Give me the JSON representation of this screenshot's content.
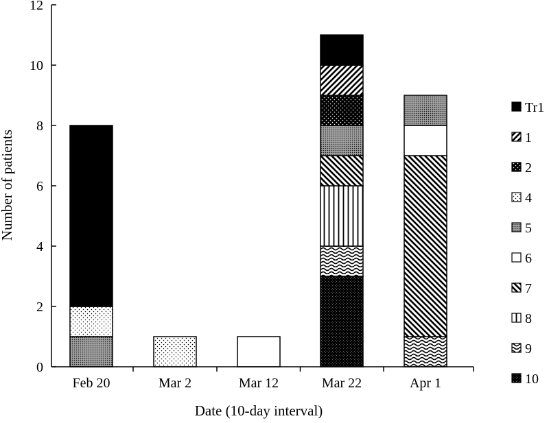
{
  "chart_data": {
    "type": "bar",
    "stacked": true,
    "xlabel": "Date (10-day interval)",
    "ylabel": "Number of patients",
    "ylim": [
      0,
      12
    ],
    "yticks": [
      0,
      2,
      4,
      6,
      8,
      10,
      12
    ],
    "grid": false,
    "legend_position": "right",
    "categories": [
      "Feb 20",
      "Mar 2",
      "Mar 12",
      "Mar 22",
      "Apr 1"
    ],
    "series": [
      {
        "name": "Tr1",
        "pattern": "solid-black",
        "values": [
          6,
          0,
          0,
          1,
          0
        ]
      },
      {
        "name": "1",
        "pattern": "diagonal-up",
        "values": [
          0,
          0,
          0,
          1,
          0
        ]
      },
      {
        "name": "2",
        "pattern": "black-dotted",
        "values": [
          0,
          0,
          0,
          1,
          0
        ]
      },
      {
        "name": "4",
        "pattern": "sparse-dots",
        "values": [
          1,
          1,
          0,
          0,
          0
        ]
      },
      {
        "name": "5",
        "pattern": "fine-gray",
        "values": [
          1,
          0,
          0,
          1,
          1
        ]
      },
      {
        "name": "6",
        "pattern": "white",
        "values": [
          0,
          0,
          1,
          0,
          1
        ]
      },
      {
        "name": "7",
        "pattern": "diagonal-down",
        "values": [
          0,
          0,
          0,
          1,
          6
        ]
      },
      {
        "name": "8",
        "pattern": "vertical-lines",
        "values": [
          0,
          0,
          0,
          2,
          0
        ]
      },
      {
        "name": "9",
        "pattern": "wave",
        "values": [
          0,
          0,
          0,
          1,
          1
        ]
      },
      {
        "name": "10",
        "pattern": "dark-dense",
        "values": [
          0,
          0,
          0,
          3,
          0
        ]
      }
    ],
    "stack_order": [
      [
        "5",
        "4",
        "Tr1"
      ],
      [
        "4"
      ],
      [
        "6"
      ],
      [
        "10",
        "9",
        "8",
        "7",
        "5",
        "2",
        "1",
        "Tr1"
      ],
      [
        "9",
        "7",
        "6",
        "5"
      ]
    ]
  }
}
